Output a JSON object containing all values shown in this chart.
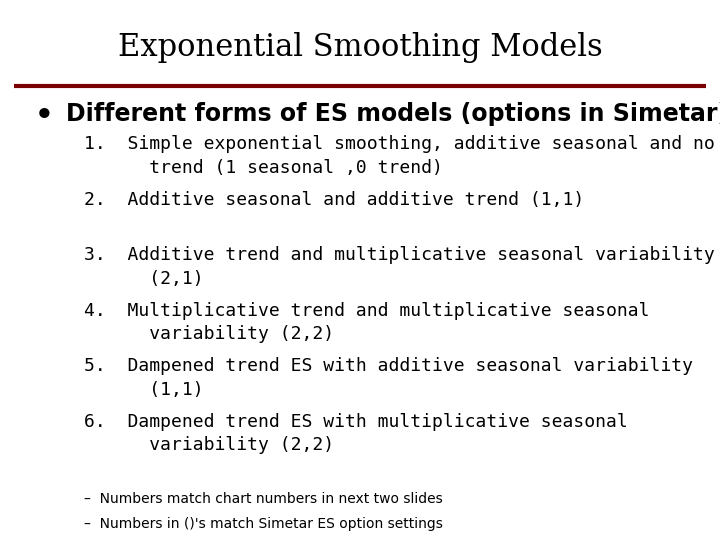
{
  "title": "Exponential Smoothing Models",
  "title_fontsize": 22,
  "title_color": "#000000",
  "title_font": "serif",
  "background_color": "#ffffff",
  "separator_color": "#7B0000",
  "bullet_text": "Different forms of ES models (options in Simetar)",
  "bullet_fontsize": 17,
  "bullet_color": "#000000",
  "items": [
    "1.  Simple exponential smoothing, additive seasonal and no\n      trend (1 seasonal ,0 trend)",
    "2.  Additive seasonal and additive trend (1,1)",
    "3.  Additive trend and multiplicative seasonal variability\n      (2,1)",
    "4.  Multiplicative trend and multiplicative seasonal\n      variability (2,2)",
    "5.  Dampened trend ES with additive seasonal variability\n      (1,1)",
    "6.  Dampened trend ES with multiplicative seasonal\n      variability (2,2)"
  ],
  "item_fontsize": 13,
  "item_color": "#000000",
  "footnotes": [
    "–  Numbers match chart numbers in next two slides",
    "–  Numbers in ()'s match Simetar ES option settings"
  ],
  "footnote_fontsize": 10,
  "footnote_color": "#000000"
}
